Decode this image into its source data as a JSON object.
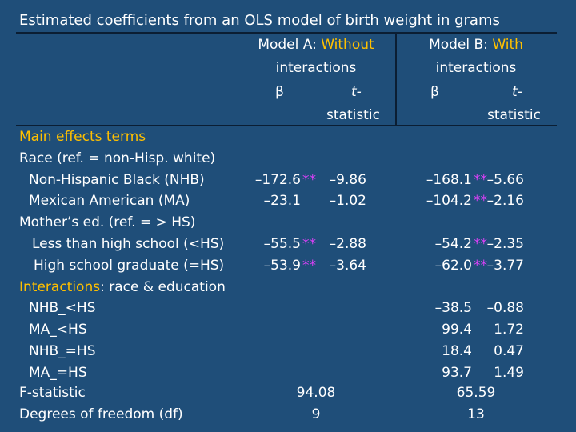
{
  "title": "Estimated coefficients from an OLS model of birth weight in grams",
  "colors": {
    "background": "#1f4e79",
    "text": "#ffffff",
    "highlight": "#ffc000",
    "stars": "#e040fb",
    "rule": "#0b1e33"
  },
  "header": {
    "model_a": {
      "prefix": "Model A: ",
      "highlight": "Without",
      "suffix": "interactions"
    },
    "model_b": {
      "prefix": "Model  B: ",
      "highlight": "With",
      "suffix": "interactions"
    },
    "beta": "β",
    "t_top": "t-",
    "t_bottom": "statistic"
  },
  "rows": [
    {
      "label": "Main effects terms",
      "label_color": "highlight",
      "a_beta": "",
      "a_star": "",
      "a_t": "",
      "b_beta": "",
      "b_star": "",
      "b_t": ""
    },
    {
      "label": "Race (ref. = non-Hisp. white)",
      "a_beta": "",
      "a_star": "",
      "a_t": "",
      "b_beta": "",
      "b_star": "",
      "b_t": ""
    },
    {
      "label": "Non-Hispanic Black (NHB)",
      "a_beta": "–172.6",
      "a_star": "**",
      "a_t": "–9.86",
      "b_beta": "–168.1",
      "b_star": "**",
      "b_t": "–5.66"
    },
    {
      "label": "Mexican American (MA)",
      "a_beta": "–23.1",
      "a_star": "",
      "a_t": "–1.02",
      "b_beta": "–104.2",
      "b_star": "**",
      "b_t": "–2.16"
    },
    {
      "label": "Mother’s ed. (ref. = > HS)",
      "a_beta": "",
      "a_star": "",
      "a_t": "",
      "b_beta": "",
      "b_star": "",
      "b_t": ""
    },
    {
      "label": "Less than high school (<HS)",
      "a_beta": "–55.5",
      "a_star": "**",
      "a_t": "–2.88",
      "b_beta": "–54.2",
      "b_star": "**",
      "b_t": "–2.35"
    },
    {
      "label": "High school graduate (=HS)",
      "a_beta": "–53.9",
      "a_star": "**",
      "a_t": "–3.64",
      "b_beta": "–62.0",
      "b_star": "**",
      "b_t": "–3.77"
    },
    {
      "label_highlight": "Interactions",
      "label_rest": ": race & education",
      "a_beta": "",
      "a_star": "",
      "a_t": "",
      "b_beta": "",
      "b_star": "",
      "b_t": ""
    },
    {
      "label": "NHB_<HS",
      "a_beta": "",
      "a_star": "",
      "a_t": "",
      "b_beta": "–38.5",
      "b_star": "",
      "b_t": "–0.88"
    },
    {
      "label": "MA_<HS",
      "a_beta": "",
      "a_star": "",
      "a_t": "",
      "b_beta": "99.4",
      "b_star": "",
      "b_t": "1.72"
    },
    {
      "label": "NHB_=HS",
      "a_beta": "",
      "a_star": "",
      "a_t": "",
      "b_beta": "18.4",
      "b_star": "",
      "b_t": "0.47"
    },
    {
      "label": "MA_=HS",
      "a_beta": "",
      "a_star": "",
      "a_t": "",
      "b_beta": "93.7",
      "b_star": "",
      "b_t": "1.49"
    }
  ],
  "footer": [
    {
      "label": "F-statistic",
      "a": "94.08",
      "b": "65.59"
    },
    {
      "label": "Degrees of freedom (df)",
      "a": "9",
      "b": "13"
    }
  ]
}
